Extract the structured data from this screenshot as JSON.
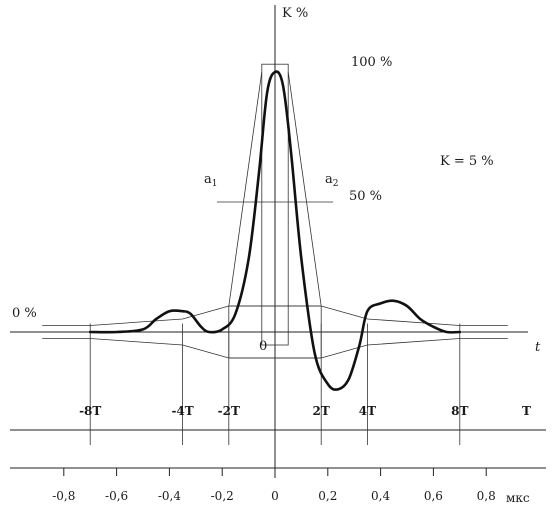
{
  "chart_data": {
    "type": "line",
    "title": "",
    "ylabel": "K %",
    "xlabel": "t",
    "origin_label": "0",
    "ref_labels": {
      "top": "100 %",
      "mid": "50 %",
      "zero": "0 %",
      "a1": "a",
      "a1_sub": "1",
      "a2": "a",
      "a2_sub": "2",
      "k_note": "K = 5 %"
    },
    "pulse": {
      "x_unit": "мкс",
      "y_unit": "K %",
      "x": [
        -0.7,
        -0.6,
        -0.5,
        -0.45,
        -0.4,
        -0.35,
        -0.32,
        -0.28,
        -0.25,
        -0.2,
        -0.15,
        -0.1,
        -0.06,
        -0.03,
        0,
        0.03,
        0.06,
        0.1,
        0.15,
        0.2,
        0.24,
        0.28,
        0.32,
        0.35,
        0.4,
        0.45,
        0.5,
        0.55,
        0.6,
        0.65,
        0.7
      ],
      "y": [
        0,
        0,
        1,
        5,
        8,
        8,
        7,
        2,
        0,
        1,
        7,
        28,
        62,
        92,
        100,
        95,
        70,
        28,
        -8,
        -20,
        -22,
        -18,
        -5,
        8,
        11,
        12,
        10,
        5,
        2,
        0,
        0
      ]
    },
    "t_axis": {
      "title": "T",
      "ticks": [
        {
          "label": "-8T",
          "x": -0.7
        },
        {
          "label": "-4T",
          "x": -0.35
        },
        {
          "label": "-2T",
          "x": -0.175
        },
        {
          "label": "2T",
          "x": 0.175
        },
        {
          "label": "4T",
          "x": 0.35
        },
        {
          "label": "8T",
          "x": 0.7
        }
      ]
    },
    "us_axis": {
      "unit": "мкс",
      "ticks": [
        {
          "label": "-0,8",
          "x": -0.8
        },
        {
          "label": "-0,6",
          "x": -0.6
        },
        {
          "label": "-0,4",
          "x": -0.4
        },
        {
          "label": "-0,2",
          "x": -0.2
        },
        {
          "label": "0",
          "x": 0
        },
        {
          "label": "0,2",
          "x": 0.2
        },
        {
          "label": "0,4",
          "x": 0.4
        },
        {
          "label": "0,6",
          "x": 0.6
        },
        {
          "label": "0,8",
          "x": 0.8
        }
      ]
    },
    "tolerance_mask": {
      "x": [
        -0.7,
        -0.35,
        -0.175,
        0.175,
        0.35,
        0.7
      ],
      "upper": [
        2.5,
        5,
        10,
        10,
        5,
        2.5
      ],
      "lower": [
        -2.5,
        -5,
        -10,
        -10,
        -5,
        -2.5
      ]
    },
    "peak_window": {
      "x": [
        -0.05,
        0.05
      ],
      "y": [
        -5,
        103
      ]
    },
    "half_amplitude_window": {
      "x": [
        -0.175,
        0.175
      ],
      "top": 100,
      "level": 50
    },
    "grid": false
  }
}
